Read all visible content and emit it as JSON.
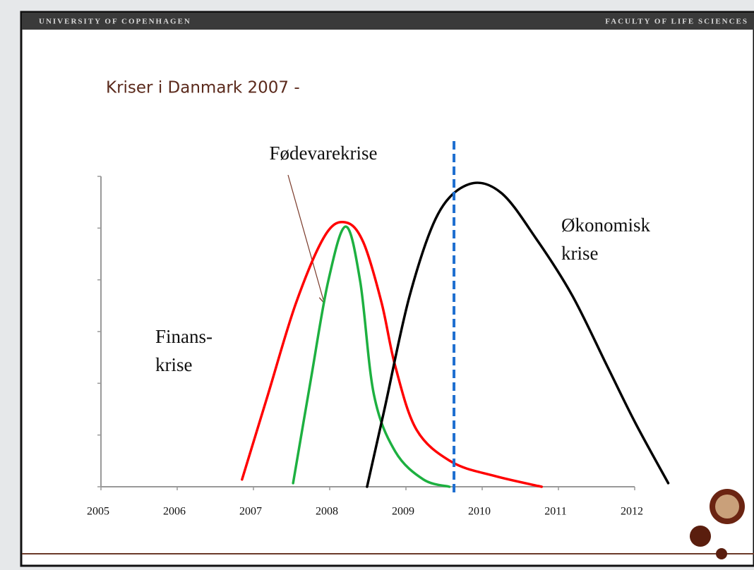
{
  "header": {
    "left": "UNIVERSITY OF COPENHAGEN",
    "right": "FACULTY OF LIFE SCIENCES"
  },
  "chart_data": {
    "type": "line",
    "title": "Kriser i Danmark 2007 -",
    "xlim": [
      2005,
      2012.5
    ],
    "xticks": [
      2005,
      2006,
      2007,
      2008,
      2009,
      2010,
      2011,
      2012
    ],
    "ylim": [
      0,
      6
    ],
    "yticks": [
      0,
      1,
      2,
      3,
      4,
      5,
      6
    ],
    "series": [
      {
        "color": "#ff0000",
        "x": [
          2006.85,
          2007.19,
          2007.56,
          2007.94,
          2008.21,
          2008.44,
          2008.68,
          2008.86,
          2009.14,
          2009.6,
          2010.16,
          2010.78
        ],
        "values": [
          0.14,
          1.78,
          3.56,
          4.86,
          5.11,
          4.73,
          3.56,
          2.33,
          1.1,
          0.48,
          0.21,
          0
        ]
      },
      {
        "color": "#1db040",
        "x": [
          2007.52,
          2007.75,
          2007.98,
          2008.21,
          2008.4,
          2008.58,
          2008.86,
          2009.23,
          2009.57
        ],
        "values": [
          0.07,
          2.05,
          3.97,
          5.03,
          3.97,
          1.78,
          0.68,
          0.14,
          0
        ]
      },
      {
        "color": "#000000",
        "x": [
          2008.49,
          2008.72,
          2009.05,
          2009.42,
          2009.83,
          2010.25,
          2010.71,
          2011.18,
          2011.64,
          2012.01,
          2012.44
        ],
        "values": [
          0,
          1.51,
          3.7,
          5.27,
          5.85,
          5.68,
          4.79,
          3.7,
          2.33,
          1.23,
          0.07
        ]
      }
    ],
    "vline": {
      "x": 2009.63,
      "color": "#1f6fd0"
    },
    "annotations": [
      {
        "lines": [
          "Fødevarekrise"
        ]
      },
      {
        "lines": [
          "Økonomisk",
          "krise"
        ]
      },
      {
        "lines": [
          "Finans-",
          "krise"
        ]
      }
    ]
  }
}
